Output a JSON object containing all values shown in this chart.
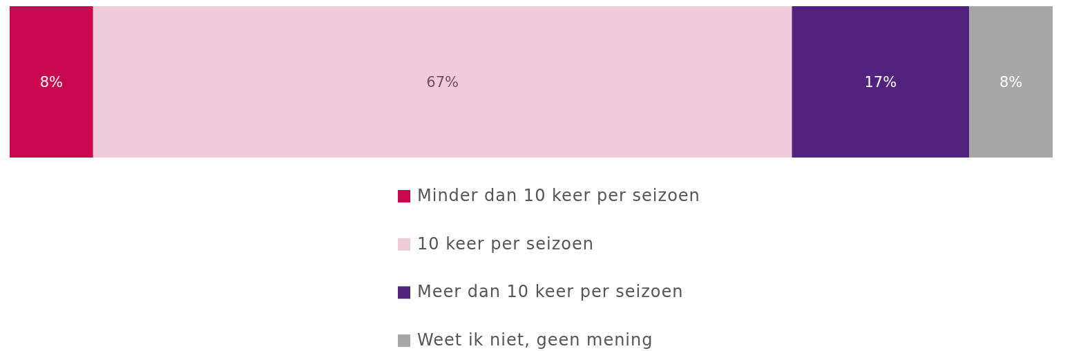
{
  "chart_data": {
    "type": "bar",
    "orientation": "horizontal",
    "stacked": true,
    "categories": [
      null
    ],
    "xlim": [
      0,
      100
    ],
    "legend": "bottom",
    "series": [
      {
        "name": "Minder dan 10 keer per seizoen",
        "color": "#c8074e",
        "values": [
          8
        ],
        "value_labels": [
          "8%"
        ]
      },
      {
        "name": "10 keer per seizoen",
        "color": "#f0cbdc",
        "values": [
          67
        ],
        "value_labels": [
          "67%"
        ]
      },
      {
        "name": "Meer dan 10 keer per seizoen",
        "color": "#52237e",
        "values": [
          17
        ],
        "value_labels": [
          "17%"
        ]
      },
      {
        "name": "Weet ik niet, geen mening",
        "color": "#a6a6a6",
        "values": [
          8
        ],
        "value_labels": [
          "8%"
        ]
      }
    ]
  }
}
